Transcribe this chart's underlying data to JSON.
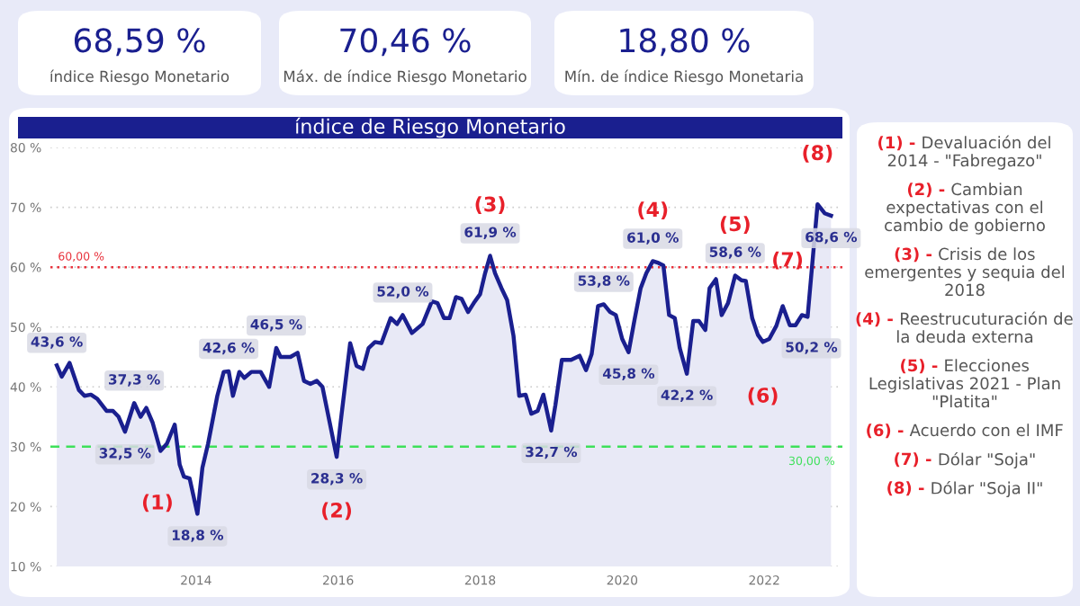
{
  "chart_data": [
    {
      "type": "other",
      "annotations": [
        "68,59 %",
        "índice Riesgo Monetario",
        "70,46 %",
        "Máx. de índice Riesgo Monetario",
        "18,80 %",
        "Mín. de índice Riesgo Monetaria"
      ]
    },
    {
      "type": "area",
      "title": "índice de Riesgo Monetario",
      "xlim": [
        2011.95,
        2023.1
      ],
      "xticks": [
        2014,
        2016,
        2018,
        2020,
        2022
      ],
      "ylim": [
        10,
        80
      ],
      "yticks": [
        {
          "value": 10,
          "label": "10 %"
        },
        {
          "value": 20,
          "label": "20 %"
        },
        {
          "value": 30,
          "label": "30 %"
        },
        {
          "value": 40,
          "label": "40 %"
        },
        {
          "value": 50,
          "label": "50 %"
        },
        {
          "value": 60,
          "label": "60 %"
        },
        {
          "value": 70,
          "label": "70 %"
        },
        {
          "value": 80,
          "label": "80 %"
        }
      ],
      "grid": "y",
      "legend": false,
      "series": [
        {
          "color": "#1a1f8f",
          "x": [
            2012.04,
            2012.11,
            2012.22,
            2012.35,
            2012.43,
            2012.52,
            2012.61,
            2012.74,
            2012.83,
            2012.91,
            2013.0,
            2013.13,
            2013.22,
            2013.3,
            2013.39,
            2013.5,
            2013.59,
            2013.7,
            2013.77,
            2013.83,
            2013.91,
            2014.02,
            2014.09,
            2014.17,
            2014.3,
            2014.39,
            2014.46,
            2014.52,
            2014.61,
            2014.68,
            2014.78,
            2014.91,
            2015.03,
            2015.13,
            2015.19,
            2015.33,
            2015.43,
            2015.52,
            2015.61,
            2015.7,
            2015.78,
            2015.98,
            2016.04,
            2016.17,
            2016.26,
            2016.35,
            2016.43,
            2016.52,
            2016.61,
            2016.74,
            2016.83,
            2016.91,
            2017.04,
            2017.19,
            2017.32,
            2017.4,
            2017.49,
            2017.57,
            2017.66,
            2017.74,
            2017.83,
            2017.91,
            2018.0,
            2018.07,
            2018.14,
            2018.21,
            2018.3,
            2018.38,
            2018.47,
            2018.55,
            2018.64,
            2018.72,
            2018.81,
            2018.89,
            2019.0,
            2019.06,
            2019.15,
            2019.28,
            2019.4,
            2019.49,
            2019.57,
            2019.66,
            2019.74,
            2019.83,
            2019.91,
            2020.0,
            2020.09,
            2020.17,
            2020.26,
            2020.34,
            2020.43,
            2020.51,
            2020.58,
            2020.66,
            2020.74,
            2020.81,
            2020.91,
            2021.0,
            2021.08,
            2021.17,
            2021.23,
            2021.32,
            2021.4,
            2021.49,
            2021.59,
            2021.68,
            2021.74,
            2021.83,
            2021.91,
            2021.98,
            2022.07,
            2022.17,
            2022.26,
            2022.36,
            2022.44,
            2022.53,
            2022.61,
            2022.75,
            2022.85,
            2022.94
          ],
          "values": [
            43.6,
            41.7,
            44,
            39.5,
            38.5,
            38.7,
            38,
            36,
            36,
            35,
            32.5,
            37.3,
            35,
            36.5,
            34,
            29.3,
            30.5,
            33.7,
            27,
            25,
            24.7,
            18.8,
            26.5,
            30.5,
            38.5,
            42.5,
            42.6,
            38.5,
            42.5,
            41.5,
            42.5,
            42.5,
            40,
            46.5,
            45,
            45,
            45.7,
            41,
            40.5,
            41,
            40,
            28.3,
            34.5,
            47.3,
            43.5,
            43,
            46.5,
            47.5,
            47.3,
            51.5,
            50.5,
            52.0,
            49,
            50.5,
            54.3,
            54,
            51.5,
            51.5,
            55,
            54.7,
            52.5,
            54,
            55.5,
            59,
            61.9,
            59,
            56.5,
            54.5,
            48.5,
            38.5,
            38.7,
            35.5,
            36,
            38.7,
            32.7,
            37,
            44.5,
            44.5,
            45.2,
            42.8,
            45.5,
            53.5,
            53.8,
            52.5,
            52,
            48,
            45.8,
            51,
            56.5,
            59,
            61.0,
            60.7,
            60.3,
            52,
            51.5,
            46.5,
            42.2,
            51,
            51,
            49.5,
            56.5,
            58,
            52,
            54,
            58.6,
            57.8,
            57.7,
            51.5,
            48.7,
            47.5,
            48,
            50.2,
            53.5,
            50.3,
            50.3,
            52,
            51.7,
            70.5,
            69,
            68.6
          ],
          "value_labels": [
            "43,6 %",
            null,
            null,
            null,
            null,
            null,
            null,
            null,
            null,
            null,
            "32,5 %",
            "37,3 %",
            null,
            null,
            null,
            null,
            null,
            null,
            null,
            null,
            null,
            "18,8 %",
            null,
            null,
            null,
            null,
            "42,6 %",
            null,
            null,
            null,
            null,
            null,
            null,
            "46,5 %",
            null,
            null,
            null,
            null,
            null,
            null,
            null,
            "28,3 %",
            null,
            null,
            null,
            null,
            null,
            null,
            null,
            null,
            null,
            "52,0 %",
            null,
            null,
            null,
            null,
            null,
            null,
            null,
            null,
            null,
            null,
            null,
            null,
            "61,9 %",
            null,
            null,
            null,
            null,
            null,
            null,
            null,
            null,
            null,
            "32,7 %",
            null,
            null,
            null,
            null,
            null,
            null,
            null,
            "53,8 %",
            null,
            null,
            null,
            "45,8 %",
            null,
            null,
            null,
            "61,0 %",
            null,
            null,
            null,
            null,
            null,
            "42,2 %",
            null,
            null,
            null,
            null,
            null,
            null,
            null,
            "58,6 %",
            null,
            null,
            null,
            null,
            null,
            null,
            "50,2 %",
            null,
            null,
            null,
            null,
            null,
            null,
            null,
            "68,6 %"
          ]
        }
      ],
      "ref_lines": [
        {
          "axis": "y",
          "value": 60,
          "label": "60,00 %",
          "color": "#e8323c",
          "line_style": "dotted"
        },
        {
          "axis": "y",
          "value": 30,
          "label": "30,00 %",
          "color": "#3ee05a",
          "line_style": "dashed"
        }
      ],
      "annotations": [
        {
          "text": "(1)",
          "x": 2014.02,
          "y": 18.8
        },
        {
          "text": "(2)",
          "x": 2015.98,
          "y": 28.3
        },
        {
          "text": "(3)",
          "x": 2018.14,
          "y": 61.9
        },
        {
          "text": "(4)",
          "x": 2020.43,
          "y": 61.0
        },
        {
          "text": "(5)",
          "x": 2021.59,
          "y": 58.6
        },
        {
          "text": "(6)",
          "x": 2021.98,
          "y": 47.5
        },
        {
          "text": "(7)",
          "x": 2022.68,
          "y": 61
        },
        {
          "text": "(8)",
          "x": 2022.75,
          "y": 70.5
        }
      ]
    },
    {
      "type": "other",
      "annotations": [
        "(1) - Devaluación del\n2014 - \"Fabregazo\"",
        "(2) - Cambian\nexpectativas con el\ncambio de gobierno",
        "(3) - Crisis de los\nemergentes y sequia del\n2018",
        "(4) - Reestrucuturación de\nla deuda externa",
        "(5) - Elecciones\nLegislativas 2021 - Plan\n\"Platita\"",
        "(6) - Acuerdo con el IMF",
        "(7) - Dólar \"Soja\"",
        "(8) - Dólar \"Soja II\""
      ]
    }
  ]
}
